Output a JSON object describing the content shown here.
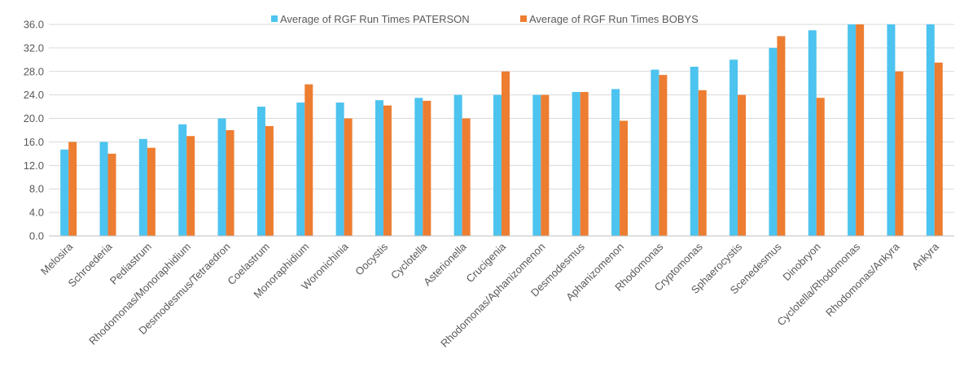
{
  "chart_data": {
    "type": "bar",
    "title": "",
    "xlabel": "",
    "ylabel": "",
    "ylim": [
      0,
      36
    ],
    "yticks": [
      "0.0",
      "4.0",
      "8.0",
      "12.0",
      "16.0",
      "20.0",
      "24.0",
      "28.0",
      "32.0",
      "36.0"
    ],
    "grid": true,
    "legend_position": "top",
    "categories": [
      "Melosira",
      "Schroederia",
      "Pediastrum",
      "Rhodomonas/Monoraphidium",
      "Desmodesmus/Tetraedron",
      "Coelastrum",
      "Monoraphidium",
      "Woronichinia",
      "Oocystis",
      "Cyclotella",
      "Asterionella",
      "Crucigenia",
      "Rhodomonas/Aphanizomenon",
      "Desmodesmus",
      "Aphanizomenon",
      "Rhodomonas",
      "Cryptomonas",
      "Sphaerocystis",
      "Scenedesmus",
      "Dinobryon",
      "Cyclotella/Rhodomonas",
      "Rhodomonas/Ankyra",
      "Ankyra"
    ],
    "series": [
      {
        "name": "Average of RGF Run Times PATERSON",
        "color": "#4dc3ef",
        "values": [
          14.7,
          16.0,
          16.5,
          19.0,
          20.0,
          22.0,
          22.7,
          22.7,
          23.1,
          23.5,
          24.0,
          24.0,
          24.0,
          24.5,
          25.0,
          28.3,
          28.8,
          30.0,
          32.0,
          35.0,
          36.0,
          36.0,
          36.0
        ]
      },
      {
        "name": "Average of RGF Run Times BOBYS",
        "color": "#ed7d31",
        "values": [
          16.0,
          14.0,
          15.0,
          17.0,
          18.0,
          18.7,
          25.8,
          20.0,
          22.2,
          23.0,
          20.0,
          28.0,
          24.0,
          24.5,
          19.6,
          27.4,
          24.8,
          24.0,
          34.0,
          23.5,
          36.0,
          28.0,
          29.5
        ]
      }
    ]
  }
}
